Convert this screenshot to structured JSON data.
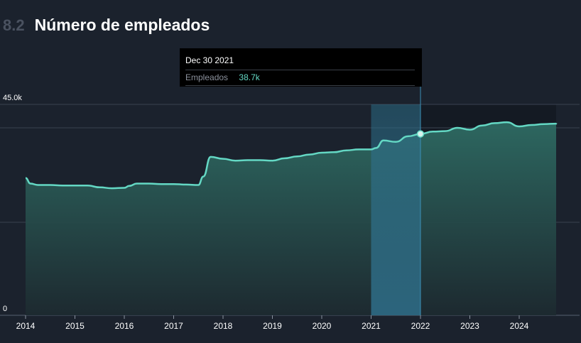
{
  "header": {
    "section_number": "8.2",
    "title": "Número de empleados"
  },
  "tooltip": {
    "date": "Dec 30 2021",
    "series_label": "Empleados",
    "value": "38.7k",
    "highlight_x": [
      2021.0,
      2022.0
    ],
    "marker": {
      "x": 2022.0,
      "y": 38.7
    }
  },
  "colors": {
    "background": "#1b222d",
    "line": "#64d8c4",
    "area_top": "#2e6b63",
    "area_bottom": "#1d2a30",
    "highlight": "#2f6f8a",
    "gridline": "#3a4250",
    "axis_text": "#ffffff",
    "section_number": "#4a5260"
  },
  "chart_data": {
    "type": "area",
    "title": "Número de empleados",
    "xlabel": "",
    "ylabel": "",
    "xlim": [
      2014.0,
      2025.1
    ],
    "ylim": [
      0,
      45
    ],
    "y_ticks": [
      {
        "value": 45,
        "label": "45.0k"
      },
      {
        "value": 0,
        "label": "0"
      }
    ],
    "x_ticks": [
      "2014",
      "2015",
      "2016",
      "2017",
      "2018",
      "2019",
      "2020",
      "2021",
      "2022",
      "2023",
      "2024"
    ],
    "grid": true,
    "series": [
      {
        "x": [
          2014.0,
          2014.1,
          2014.25,
          2014.5,
          2014.75,
          2015.0,
          2015.25,
          2015.5,
          2015.75,
          2016.0,
          2016.1,
          2016.25,
          2016.5,
          2016.75,
          2017.0,
          2017.25,
          2017.5,
          2017.6,
          2017.75,
          2018.0,
          2018.25,
          2018.5,
          2018.75,
          2019.0,
          2019.25,
          2019.5,
          2019.75,
          2020.0,
          2020.25,
          2020.5,
          2020.75,
          2021.0,
          2021.1,
          2021.25,
          2021.5,
          2021.75,
          2022.0,
          2022.25,
          2022.5,
          2022.75,
          2023.0,
          2023.25,
          2023.5,
          2023.75,
          2024.0,
          2024.25,
          2024.5,
          2024.75,
          2025.0
        ],
        "values": [
          29.3,
          28.1,
          27.8,
          27.8,
          27.7,
          27.7,
          27.7,
          27.3,
          27.1,
          27.2,
          27.6,
          28.1,
          28.1,
          28.0,
          28.0,
          27.9,
          27.8,
          29.6,
          33.8,
          33.4,
          33.0,
          33.1,
          33.1,
          33.0,
          33.5,
          33.9,
          34.3,
          34.7,
          34.8,
          35.2,
          35.4,
          35.4,
          35.7,
          37.3,
          37.0,
          38.2,
          38.7,
          39.2,
          39.3,
          40.0,
          39.6,
          40.5,
          41.0,
          41.2,
          40.3,
          40.6,
          40.8,
          40.9,
          41.0
        ]
      }
    ]
  }
}
